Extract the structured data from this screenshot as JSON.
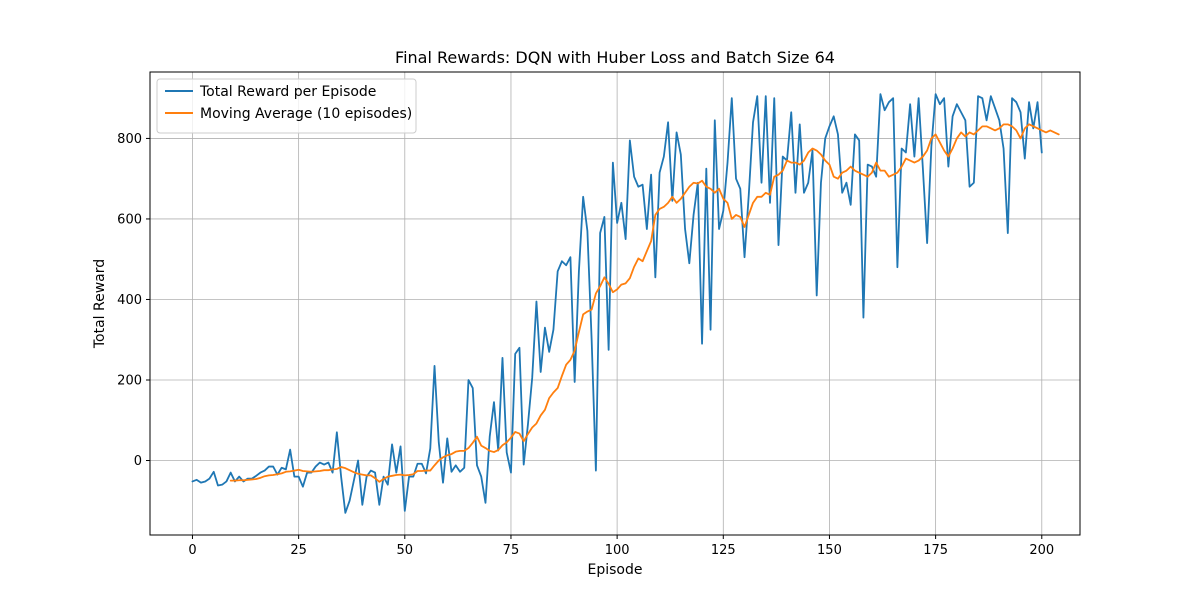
{
  "chart_data": {
    "type": "line",
    "title": "Final Rewards: DQN with Huber Loss and Batch Size 64",
    "xlabel": "Episode",
    "ylabel": "Total Reward",
    "xlim": [
      -10,
      209
    ],
    "ylim": [
      -185,
      965
    ],
    "xticks": [
      0,
      25,
      50,
      75,
      100,
      125,
      150,
      175,
      200
    ],
    "yticks": [
      0,
      200,
      400,
      600,
      800
    ],
    "grid": true,
    "legend_position": "upper left",
    "colors": {
      "raw": "#1f77b4",
      "moving_average": "#ff7f0e",
      "grid": "#b0b0b0",
      "axes": "#000000"
    },
    "series": [
      {
        "name": "Total Reward per Episode",
        "x_start": 0,
        "values": [
          -52,
          -48,
          -55,
          -52,
          -45,
          -28,
          -62,
          -60,
          -52,
          -30,
          -52,
          -40,
          -52,
          -45,
          -45,
          -38,
          -30,
          -25,
          -15,
          -15,
          -35,
          -18,
          -22,
          27,
          -40,
          -40,
          -65,
          -30,
          -30,
          -15,
          -5,
          -10,
          -5,
          -30,
          70,
          -40,
          -130,
          -100,
          -50,
          0,
          -110,
          -40,
          -25,
          -30,
          -110,
          -40,
          -60,
          40,
          -30,
          35,
          -125,
          -40,
          -40,
          -8,
          -8,
          -32,
          30,
          235,
          45,
          -55,
          55,
          -28,
          -12,
          -28,
          -18,
          200,
          180,
          -12,
          -40,
          -105,
          60,
          145,
          25,
          255,
          20,
          -30,
          265,
          280,
          -10,
          90,
          205,
          395,
          220,
          330,
          270,
          325,
          470,
          495,
          485,
          505,
          195,
          470,
          655,
          570,
          300,
          -25,
          565,
          605,
          275,
          740,
          590,
          640,
          550,
          795,
          705,
          680,
          685,
          575,
          710,
          455,
          715,
          755,
          840,
          645,
          815,
          760,
          575,
          490,
          610,
          690,
          290,
          725,
          325,
          845,
          575,
          620,
          740,
          900,
          700,
          675,
          505,
          660,
          840,
          905,
          690,
          905,
          640,
          900,
          535,
          755,
          745,
          865,
          665,
          835,
          665,
          690,
          770,
          410,
          690,
          800,
          830,
          855,
          810,
          665,
          690,
          635,
          810,
          795,
          355,
          735,
          730,
          705,
          910,
          870,
          890,
          900,
          480,
          775,
          765,
          885,
          755,
          900,
          725,
          540,
          780,
          910,
          885,
          900,
          730,
          855,
          885,
          865,
          845,
          680,
          690,
          905,
          900,
          845,
          905,
          875,
          845,
          775,
          565,
          900,
          890,
          865,
          750,
          890,
          825,
          890,
          765
        ]
      },
      {
        "name": "Moving Average (10 episodes)",
        "x_start": 9,
        "values": [
          -50,
          -50,
          -49,
          -49,
          -48,
          -47,
          -46,
          -43,
          -39,
          -37,
          -36,
          -34,
          -32,
          -28,
          -27,
          -25,
          -23,
          -26,
          -27,
          -28,
          -27,
          -26,
          -24,
          -24,
          -22,
          -21,
          -16,
          -19,
          -24,
          -29,
          -33,
          -35,
          -37,
          -37,
          -44,
          -53,
          -46,
          -40,
          -38,
          -36,
          -35,
          -37,
          -36,
          -34,
          -26,
          -26,
          -25,
          -25,
          -12,
          0,
          8,
          13,
          16,
          22,
          24,
          24,
          31,
          44,
          59,
          37,
          31,
          24,
          21,
          26,
          38,
          45,
          57,
          71,
          67,
          48,
          66,
          82,
          92,
          112,
          126,
          155,
          169,
          180,
          210,
          238,
          250,
          273,
          319,
          363,
          370,
          375,
          415,
          433,
          455,
          439,
          418,
          425,
          437,
          440,
          453,
          481,
          502,
          495,
          520,
          545,
          610,
          625,
          630,
          640,
          655,
          640,
          650,
          665,
          680,
          690,
          688,
          695,
          680,
          675,
          665,
          675,
          650,
          640,
          600,
          610,
          605,
          580,
          610,
          640,
          655,
          655,
          665,
          660,
          705,
          710,
          720,
          745,
          740,
          740,
          735,
          745,
          765,
          775,
          770,
          760,
          745,
          735,
          705,
          700,
          715,
          720,
          730,
          720,
          715,
          710,
          705,
          715,
          740,
          720,
          720,
          705,
          710,
          715,
          730,
          750,
          745,
          740,
          745,
          755,
          770,
          800,
          810,
          790,
          770,
          755,
          775,
          800,
          815,
          805,
          815,
          810,
          820,
          830,
          830,
          825,
          820,
          825,
          835,
          835,
          830,
          820,
          800,
          825,
          835,
          830,
          825,
          820,
          815,
          820,
          815,
          810
        ]
      }
    ]
  }
}
